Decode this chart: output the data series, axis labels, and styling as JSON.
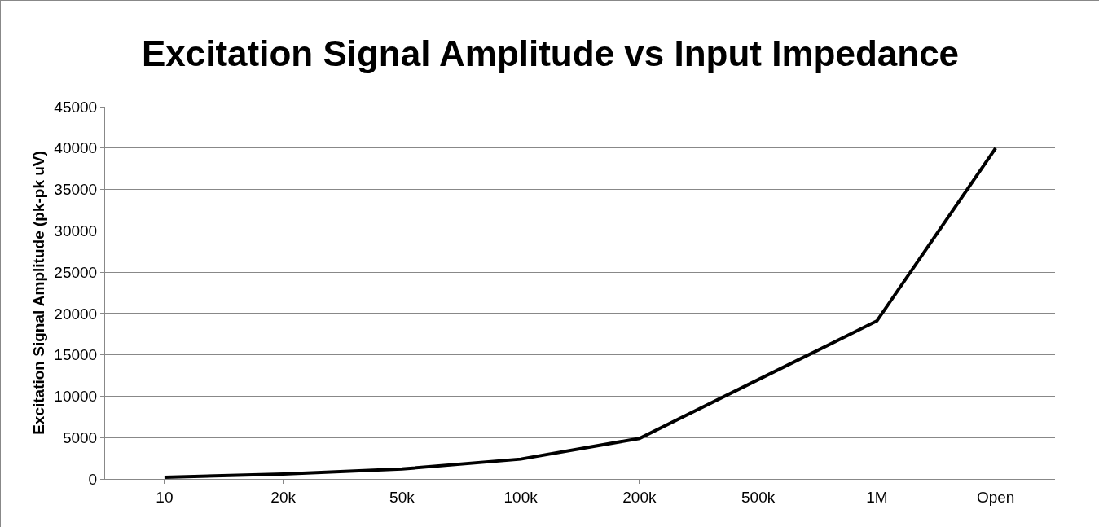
{
  "chart_data": {
    "type": "line",
    "title": "Excitation Signal Amplitude vs Input Impedance",
    "ylabel": "Excitation Signal Amplitude (pk-pk uV)",
    "categories": [
      "10",
      "20k",
      "50k",
      "100k",
      "200k",
      "500k",
      "1M",
      "Open"
    ],
    "series": [
      {
        "color": "#000000",
        "values": [
          200,
          600,
          1200,
          2400,
          4900,
          12000,
          19100,
          40000
        ]
      }
    ],
    "ylim": [
      0,
      45000
    ],
    "yticks": [
      0,
      5000,
      10000,
      15000,
      20000,
      25000,
      30000,
      35000,
      40000,
      45000
    ],
    "grid": "y",
    "marker": "none",
    "line_style": "solid"
  }
}
